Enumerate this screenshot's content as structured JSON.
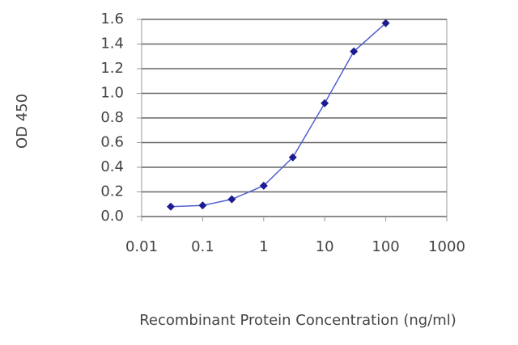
{
  "chart_data": {
    "type": "line",
    "x_label": "Recombinant Protein Concentration (ng/ml)",
    "y_label": "OD 450",
    "xscale": "log",
    "x": [
      0.03,
      0.1,
      0.3,
      1,
      3,
      10,
      30,
      100
    ],
    "series": [
      {
        "values": [
          0.08,
          0.09,
          0.14,
          0.25,
          0.48,
          0.92,
          1.34,
          1.57
        ],
        "color": "#5060d0",
        "marker_color": "#1c1c90"
      }
    ],
    "xlim": [
      0.01,
      1000
    ],
    "xticks": [
      0.01,
      0.1,
      1,
      10,
      100,
      1000
    ],
    "ylim": [
      0,
      1.6
    ],
    "yticks": [
      {
        "value": 0,
        "label": "0.0"
      },
      0.2,
      0.4,
      0.6,
      0.8,
      {
        "value": 1,
        "label": "1.0"
      },
      1.2,
      1.4,
      1.6
    ],
    "grid": true
  }
}
